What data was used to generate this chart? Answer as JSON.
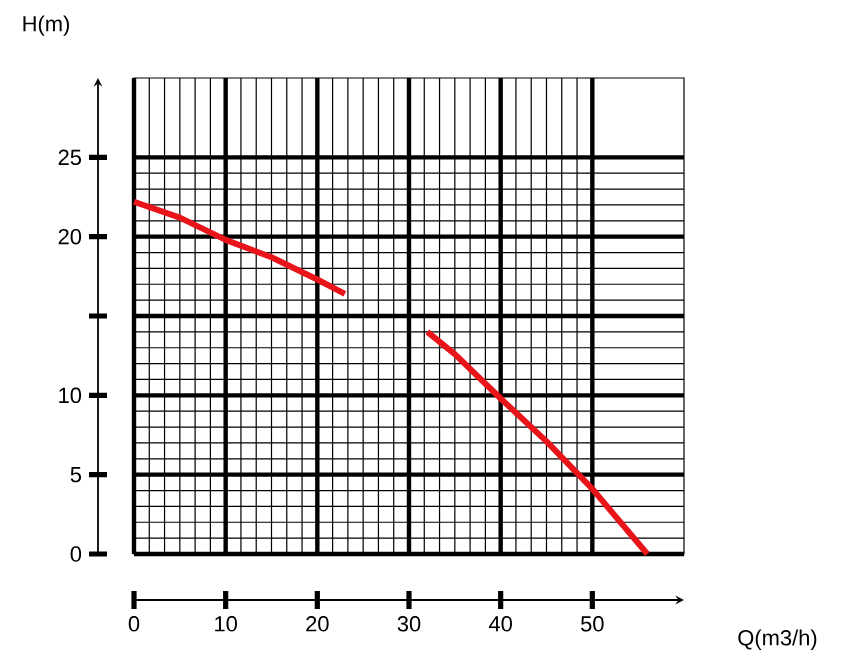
{
  "chart_data": {
    "type": "line",
    "xlabel": "Q(m3/h)",
    "ylabel": "H(m)",
    "x": [
      0,
      5,
      10,
      15,
      20,
      23,
      27,
      32,
      35,
      40,
      45,
      50,
      56
    ],
    "series": [
      {
        "color": "#e8141a",
        "values": [
          22.2,
          21.2,
          19.8,
          18.7,
          17.3,
          16.4,
          null,
          14.0,
          12.6,
          9.8,
          7.1,
          4.1,
          0
        ]
      }
    ],
    "xlim": [
      0,
      60
    ],
    "ylim": [
      0,
      30
    ],
    "xticks": [
      0,
      10,
      20,
      30,
      40,
      50
    ],
    "yticks": [
      0,
      5,
      10,
      {
        "value": 15,
        "label": null
      },
      20,
      25
    ],
    "grid": true,
    "marker": "none",
    "line_style": "solid"
  }
}
